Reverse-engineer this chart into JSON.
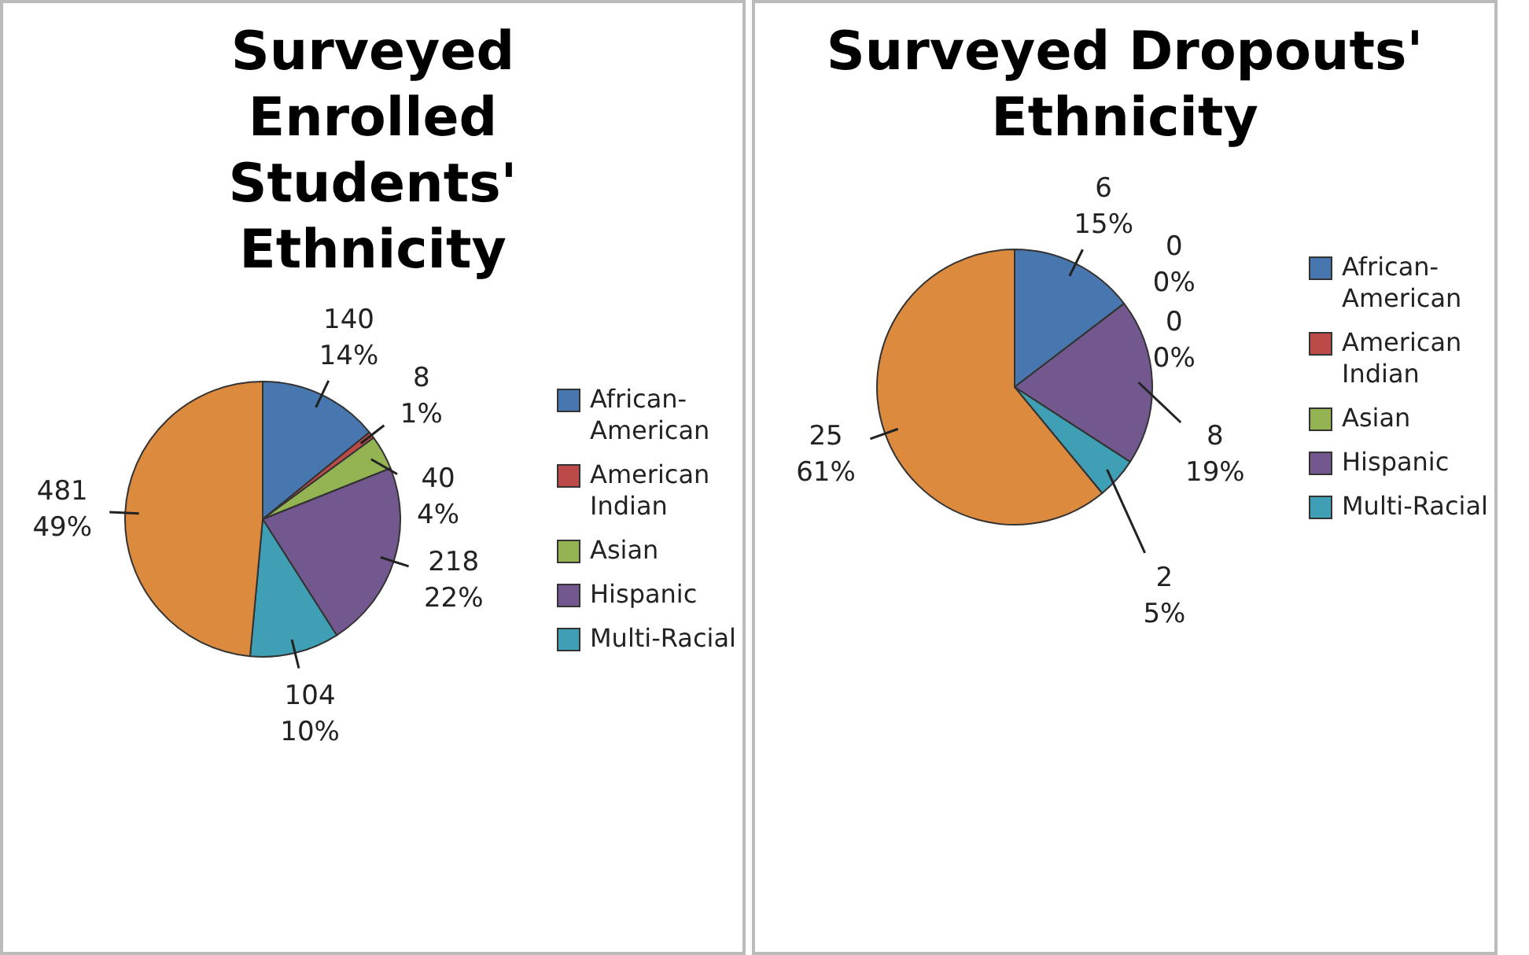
{
  "chart_data": [
    {
      "type": "pie",
      "title": "Surveyed Enrolled Students' Ethnicity",
      "categories": [
        "African-American",
        "American Indian",
        "Asian",
        "Hispanic",
        "Multi-Racial",
        null
      ],
      "values": [
        140,
        8,
        40,
        218,
        104,
        481
      ],
      "colors": [
        "#4876ae",
        "#bc4a48",
        "#94b454",
        "#73588f",
        "#3f9fb5",
        "#dc8a3e"
      ],
      "value_labels": [
        "140\n14%",
        "8\n1%",
        "40\n4%",
        "218\n22%",
        "104\n10%",
        "481\n49%"
      ],
      "legend": "right"
    },
    {
      "type": "pie",
      "title": "Surveyed Dropouts' Ethnicity",
      "categories": [
        "African-American",
        "American Indian",
        "Asian",
        "Hispanic",
        "Multi-Racial",
        null
      ],
      "values": [
        6,
        0,
        0,
        8,
        2,
        25
      ],
      "colors": [
        "#4876ae",
        "#bc4a48",
        "#94b454",
        "#73588f",
        "#3f9fb5",
        "#dc8a3e"
      ],
      "value_labels": [
        "6\n15%",
        "0\n0%",
        "0\n0%",
        "8\n19%",
        "2\n5%",
        "25\n61%"
      ],
      "legend": "right"
    }
  ]
}
